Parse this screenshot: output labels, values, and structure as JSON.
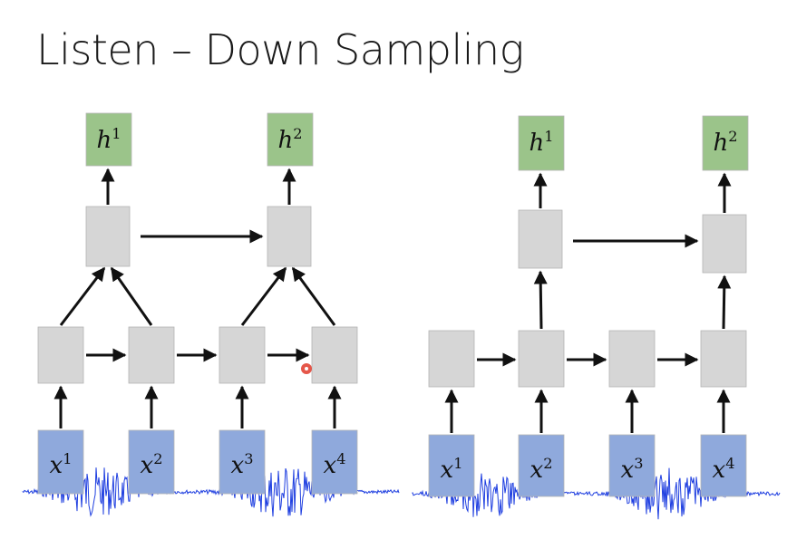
{
  "title": "Listen – Down Sampling",
  "colors": {
    "output_box": "#9bc48a",
    "hidden_box": "#d6d6d6",
    "input_box": "#8fa9dc",
    "waveform": "#1f3fe0",
    "arrow": "#111111",
    "cursor_dot": "#e03a2a"
  },
  "left_diagram": {
    "outputs": [
      {
        "base": "h",
        "sup": "1"
      },
      {
        "base": "h",
        "sup": "2"
      }
    ],
    "inputs": [
      {
        "base": "x",
        "sup": "1"
      },
      {
        "base": "x",
        "sup": "2"
      },
      {
        "base": "x",
        "sup": "3"
      },
      {
        "base": "x",
        "sup": "4"
      }
    ]
  },
  "right_diagram": {
    "outputs": [
      {
        "base": "h",
        "sup": "1"
      },
      {
        "base": "h",
        "sup": "2"
      }
    ],
    "inputs": [
      {
        "base": "x",
        "sup": "1"
      },
      {
        "base": "x",
        "sup": "2"
      },
      {
        "base": "x",
        "sup": "3"
      },
      {
        "base": "x",
        "sup": "4"
      }
    ]
  }
}
